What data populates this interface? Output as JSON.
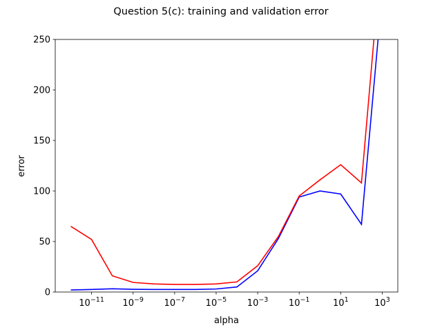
{
  "chart_data": {
    "type": "line",
    "title": "Question 5(c): training and validation error",
    "xlabel": "alpha",
    "ylabel": "error",
    "xscale": "log",
    "x": [
      1e-12,
      1e-11,
      1e-10,
      1e-09,
      1e-08,
      1e-07,
      1e-06,
      1e-05,
      0.0001,
      0.001,
      0.01,
      0.1,
      1,
      10,
      100,
      1000
    ],
    "series": [
      {
        "color": "#0000ff",
        "values": [
          2,
          2.5,
          3.2,
          2.7,
          2.5,
          2.5,
          2.5,
          3,
          5,
          21,
          53,
          94,
          100,
          97,
          67,
          296
        ]
      },
      {
        "color": "#ff0000",
        "values": [
          65,
          52,
          16,
          9.5,
          8,
          7.5,
          7.5,
          8,
          10,
          26,
          55,
          95,
          111,
          126,
          108,
          345
        ]
      }
    ],
    "xlim": [
      1.78e-13,
      5623
    ],
    "xticks": [
      {
        "value": 1e-11,
        "label": "10−11"
      },
      {
        "value": 1e-09,
        "label": "10−9"
      },
      {
        "value": 1e-07,
        "label": "10−7"
      },
      {
        "value": 1e-05,
        "label": "10−5"
      },
      {
        "value": 0.001,
        "label": "10−3"
      },
      {
        "value": 0.1,
        "label": "10−1"
      },
      {
        "value": 10,
        "label": "101"
      },
      {
        "value": 1000,
        "label": "103"
      }
    ],
    "ylim": [
      0,
      250
    ],
    "yticks": [
      0,
      50,
      100,
      150,
      200,
      250
    ]
  }
}
